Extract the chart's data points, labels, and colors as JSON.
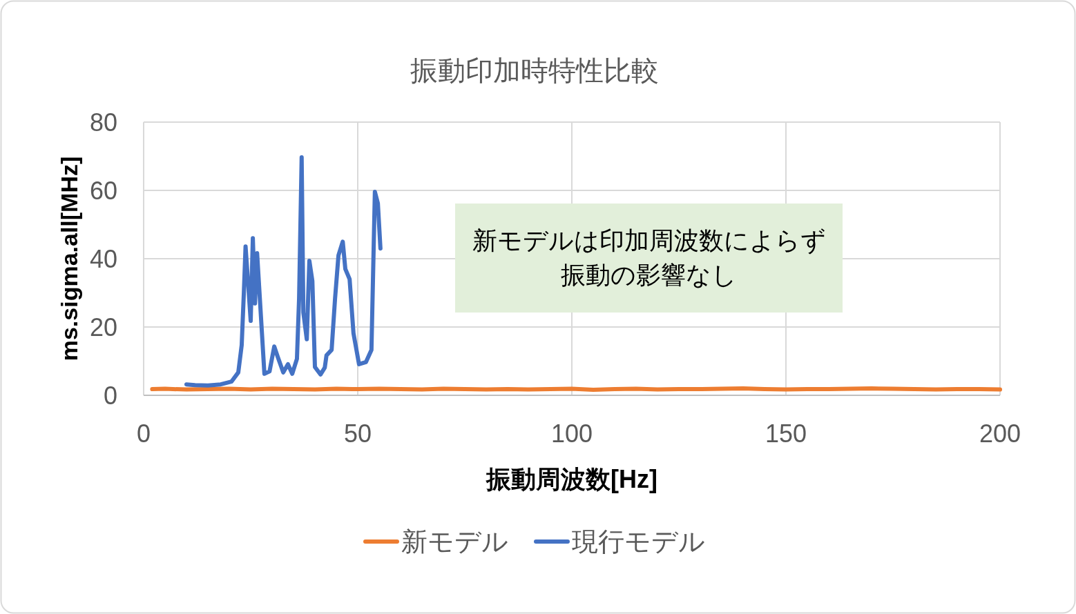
{
  "chart_data": {
    "type": "line",
    "title": "振動印加時特性比較",
    "xlabel": "振動周波数[Hz]",
    "ylabel": "ms.sigma.all[MHz]",
    "xlim": [
      0,
      200
    ],
    "xticks": [
      0,
      50,
      100,
      150,
      200
    ],
    "ylim": [
      0,
      80
    ],
    "yticks": [
      0,
      20,
      40,
      60,
      80
    ],
    "grid": true,
    "legend": "bottom",
    "annotations": [
      "新モデルは印加周波数によらず振動の影響なし"
    ],
    "series": [
      {
        "name": "新モデル",
        "color": "#ed7d31",
        "x": [
          2,
          5,
          10,
          15,
          20,
          25,
          30,
          35,
          40,
          45,
          50,
          55,
          60,
          65,
          70,
          75,
          80,
          85,
          90,
          95,
          100,
          105,
          110,
          115,
          120,
          125,
          130,
          135,
          140,
          145,
          150,
          155,
          160,
          165,
          170,
          175,
          180,
          185,
          190,
          195,
          200
        ],
        "values": [
          1.8,
          1.9,
          1.7,
          1.8,
          1.9,
          1.7,
          1.9,
          1.8,
          1.7,
          1.9,
          1.8,
          1.9,
          1.8,
          1.7,
          1.9,
          1.8,
          1.7,
          1.8,
          1.7,
          1.8,
          1.9,
          1.6,
          1.8,
          1.9,
          1.7,
          1.8,
          1.8,
          1.9,
          2.0,
          1.8,
          1.7,
          1.8,
          1.8,
          1.9,
          2.0,
          1.9,
          1.8,
          1.7,
          1.8,
          1.8,
          1.7
        ]
      },
      {
        "name": "現行モデル",
        "color": "#4472c4",
        "x": [
          10,
          12,
          15,
          18,
          20.5,
          22.1,
          22.9,
          23.4,
          23.8,
          25,
          25.5,
          26,
          26.5,
          28.2,
          29.4,
          30.5,
          31.3,
          32.6,
          33.7,
          34.7,
          35.8,
          36.3,
          36.9,
          37.3,
          38.1,
          38.7,
          39.4,
          40,
          41.3,
          42.3,
          42.7,
          43.9,
          44.7,
          45.5,
          46.5,
          47.1,
          48.1,
          49,
          50.3,
          51.9,
          53.2,
          54,
          54.7,
          55.3
        ],
        "values": [
          3.2,
          3.0,
          2.9,
          3.2,
          4,
          6.7,
          14.7,
          30,
          43.6,
          21.8,
          46,
          26.9,
          41.6,
          6.3,
          7,
          14.3,
          11.3,
          6.7,
          9.1,
          6.3,
          10.7,
          28.3,
          69.7,
          24.2,
          16.4,
          39.4,
          33.5,
          8.3,
          6.1,
          8.1,
          11.7,
          13.3,
          28.3,
          41,
          45,
          37,
          34,
          18.2,
          9.1,
          9.7,
          13.3,
          59.6,
          56.2,
          43
        ]
      }
    ]
  }
}
